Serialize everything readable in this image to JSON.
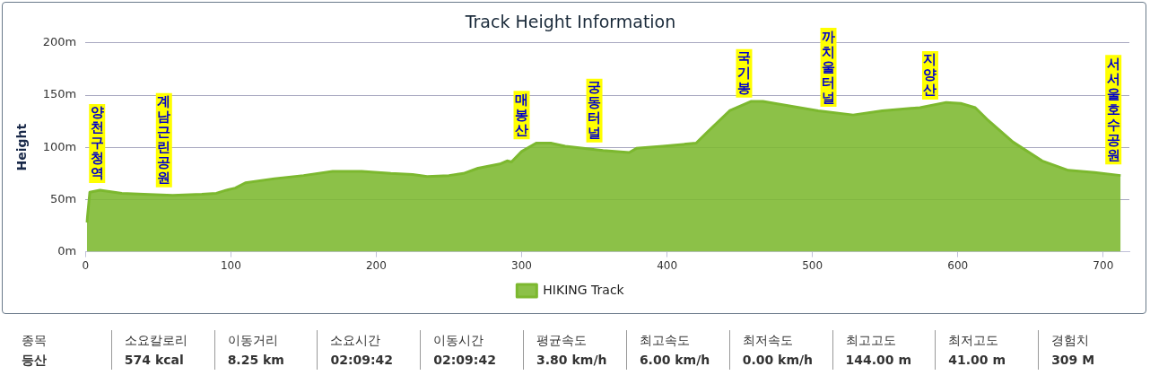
{
  "chart_data": {
    "type": "area",
    "title": "Track Height Information",
    "ylabel": "Height",
    "x": [
      1,
      3,
      10,
      25,
      40,
      60,
      80,
      90,
      97,
      103,
      110,
      130,
      150,
      170,
      190,
      210,
      225,
      235,
      250,
      260,
      270,
      285,
      290,
      293,
      300,
      310,
      320,
      330,
      356,
      374,
      379,
      397,
      420,
      428,
      443,
      458,
      466,
      474,
      504,
      528,
      548,
      574,
      592,
      602,
      612,
      620,
      638,
      658,
      676,
      694,
      712
    ],
    "series": [
      {
        "name": "HIKING Track",
        "color": "#7cb82f",
        "values": [
          28,
          57,
          59,
          56,
          55,
          54,
          55,
          56,
          59,
          61,
          66,
          70,
          73,
          77,
          77,
          75,
          74,
          72,
          73,
          75,
          80,
          84,
          87,
          86,
          96,
          104,
          104,
          101,
          97,
          95,
          99,
          101,
          104,
          115,
          135,
          144,
          144,
          142,
          135,
          131,
          135,
          138,
          143,
          142,
          138,
          127,
          105,
          87,
          78,
          76,
          73
        ]
      }
    ],
    "xlim": [
      0,
      718
    ],
    "xticks": [
      0,
      100,
      200,
      300,
      400,
      500,
      600,
      700
    ],
    "ylim": [
      0,
      200
    ],
    "yticks": [
      {
        "value": 0,
        "label": "0m"
      },
      {
        "value": 50,
        "label": "50m"
      },
      {
        "value": 100,
        "label": "100m"
      },
      {
        "value": 150,
        "label": "150m"
      },
      {
        "value": 200,
        "label": "200m"
      }
    ],
    "grid": "y",
    "legend": "bottom",
    "annotations": [
      {
        "text": "양천구청역",
        "x": 8,
        "y": 58
      },
      {
        "text": "계남근린공원",
        "x": 54,
        "y": 54
      },
      {
        "text": "매봉산",
        "x": 300,
        "y": 100
      },
      {
        "text": "궁동터널",
        "x": 350,
        "y": 97
      },
      {
        "text": "국기봉",
        "x": 453,
        "y": 140
      },
      {
        "text": "까치울터널",
        "x": 511,
        "y": 131
      },
      {
        "text": "지양산",
        "x": 581,
        "y": 138
      },
      {
        "text": "서서울호수공원",
        "x": 707,
        "y": 76
      },
      "종목",
      "등산",
      "소요칼로리",
      "574 kcal",
      "이동거리",
      "8.25 km",
      "소요시간",
      "02:09:42",
      "이동시간",
      "02:09:42",
      "평균속도",
      "3.80 km/h",
      "최고속도",
      "6.00 km/h",
      "최저속도",
      "0.00 km/h",
      "최고고도",
      "144.00 m",
      "최저고도",
      "41.00 m",
      "경험치",
      "309 M"
    ]
  }
}
